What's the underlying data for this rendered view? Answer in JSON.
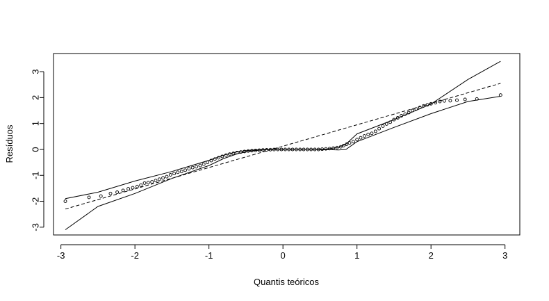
{
  "chart_data": {
    "type": "scatter",
    "title": "",
    "xlabel": "Quantis teóricos",
    "ylabel": "Resíduos",
    "xlim": [
      -3.1,
      3.2
    ],
    "ylim": [
      -3.3,
      3.7
    ],
    "xticks": [
      -3,
      -2,
      -1,
      0,
      1,
      2,
      3
    ],
    "yticks": [
      -3,
      -2,
      -1,
      0,
      1,
      2,
      3
    ],
    "xtick_labels": [
      "-3",
      "-2",
      "-1",
      "0",
      "1",
      "2",
      "3"
    ],
    "ytick_labels": [
      "-3",
      "-2",
      "-1",
      "0",
      "1",
      "2",
      "3"
    ],
    "grid": false,
    "points": {
      "x": [
        -2.94,
        -2.62,
        -2.46,
        -2.33,
        -2.24,
        -2.16,
        -2.09,
        -2.03,
        -1.97,
        -1.92,
        -1.87,
        -1.82,
        -1.77,
        -1.72,
        -1.67,
        -1.62,
        -1.57,
        -1.52,
        -1.47,
        -1.42,
        -1.37,
        -1.32,
        -1.27,
        -1.22,
        -1.17,
        -1.12,
        -1.07,
        -1.02,
        -0.97,
        -0.92,
        -0.87,
        -0.82,
        -0.77,
        -0.72,
        -0.67,
        -0.62,
        -0.57,
        -0.52,
        -0.47,
        -0.42,
        -0.37,
        -0.32,
        -0.27,
        -0.22,
        -0.17,
        -0.12,
        -0.07,
        -0.02,
        0.03,
        0.08,
        0.13,
        0.18,
        0.23,
        0.28,
        0.33,
        0.38,
        0.43,
        0.48,
        0.53,
        0.58,
        0.63,
        0.68,
        0.73,
        0.78,
        0.82,
        0.86,
        0.9,
        0.95,
        1.0,
        1.05,
        1.1,
        1.15,
        1.2,
        1.25,
        1.3,
        1.35,
        1.4,
        1.45,
        1.5,
        1.55,
        1.6,
        1.65,
        1.7,
        1.75,
        1.8,
        1.85,
        1.9,
        1.95,
        2.0,
        2.06,
        2.12,
        2.18,
        2.26,
        2.35,
        2.46,
        2.62,
        2.94
      ],
      "y": [
        -2.0,
        -1.85,
        -1.8,
        -1.7,
        -1.65,
        -1.58,
        -1.52,
        -1.48,
        -1.43,
        -1.38,
        -1.3,
        -1.28,
        -1.25,
        -1.2,
        -1.15,
        -1.1,
        -1.05,
        -0.98,
        -0.93,
        -0.88,
        -0.85,
        -0.8,
        -0.75,
        -0.7,
        -0.67,
        -0.62,
        -0.57,
        -0.5,
        -0.43,
        -0.37,
        -0.32,
        -0.27,
        -0.22,
        -0.18,
        -0.15,
        -0.12,
        -0.1,
        -0.08,
        -0.06,
        -0.05,
        -0.04,
        -0.03,
        -0.02,
        -0.015,
        -0.01,
        -0.005,
        0.0,
        0.0,
        0.0,
        0.0,
        0.0,
        0.0,
        0.0,
        0.0,
        0.0,
        0.0,
        0.0,
        0.0,
        0.01,
        0.02,
        0.03,
        0.05,
        0.07,
        0.1,
        0.15,
        0.2,
        0.25,
        0.3,
        0.38,
        0.45,
        0.52,
        0.58,
        0.62,
        0.7,
        0.8,
        0.9,
        0.98,
        1.05,
        1.15,
        1.22,
        1.3,
        1.36,
        1.42,
        1.5,
        1.56,
        1.62,
        1.68,
        1.72,
        1.76,
        1.8,
        1.85,
        1.87,
        1.88,
        1.9,
        1.93,
        1.95,
        2.1
      ]
    },
    "reference_line": {
      "x": [
        -2.94,
        2.94
      ],
      "y": [
        -2.3,
        2.55
      ]
    },
    "envelope_upper": {
      "x": [
        -2.94,
        -2.5,
        -2.0,
        -1.5,
        -1.0,
        -0.8,
        -0.6,
        -0.4,
        -0.2,
        0.0,
        0.2,
        0.4,
        0.6,
        0.75,
        0.85,
        1.0,
        1.5,
        2.0,
        2.5,
        2.94
      ],
      "y": [
        -1.9,
        -1.65,
        -1.22,
        -0.85,
        -0.42,
        -0.22,
        -0.08,
        -0.02,
        0.0,
        0.0,
        0.0,
        0.0,
        0.02,
        0.08,
        0.2,
        0.6,
        1.15,
        1.75,
        2.7,
        3.4
      ]
    },
    "envelope_lower": {
      "x": [
        -2.94,
        -2.5,
        -2.0,
        -1.5,
        -1.0,
        -0.8,
        -0.6,
        -0.4,
        -0.2,
        0.0,
        0.2,
        0.4,
        0.6,
        0.75,
        0.85,
        1.0,
        1.5,
        2.0,
        2.5,
        2.94
      ],
      "y": [
        -3.1,
        -2.2,
        -1.7,
        -1.12,
        -0.62,
        -0.35,
        -0.15,
        -0.05,
        -0.01,
        0.0,
        0.0,
        0.0,
        -0.01,
        -0.02,
        0.0,
        0.3,
        0.85,
        1.38,
        1.85,
        2.05
      ]
    }
  }
}
